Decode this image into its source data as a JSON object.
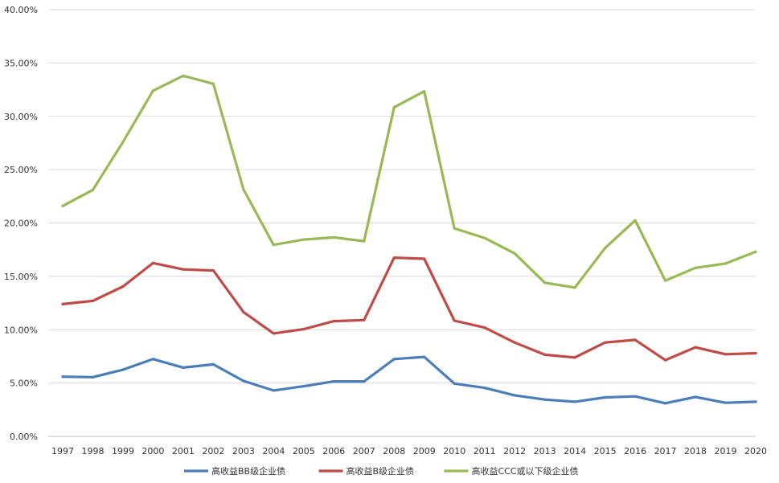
{
  "chart_data": {
    "type": "line",
    "title": "",
    "xlabel": "",
    "ylabel": "",
    "categories": [
      "1997",
      "1998",
      "1999",
      "2000",
      "2001",
      "2002",
      "2003",
      "2004",
      "2005",
      "2006",
      "2007",
      "2008",
      "2009",
      "2010",
      "2011",
      "2012",
      "2013",
      "2014",
      "2015",
      "2016",
      "2017",
      "2018",
      "2019",
      "2020"
    ],
    "ylim": [
      0,
      40
    ],
    "y_ticks": [
      0,
      5,
      10,
      15,
      20,
      25,
      30,
      35,
      40
    ],
    "y_tick_labels": [
      "0.00%",
      "5.00%",
      "10.00%",
      "15.00%",
      "20.00%",
      "25.00%",
      "30.00%",
      "35.00%",
      "40.00%"
    ],
    "grid": "horizontal",
    "legend_position": "bottom",
    "series": [
      {
        "name": "高收益BB级企业债",
        "color": "#4a7ebb",
        "values": [
          5.6,
          5.55,
          6.25,
          7.25,
          6.45,
          6.75,
          5.2,
          4.3,
          4.7,
          5.15,
          5.15,
          7.25,
          7.45,
          4.95,
          4.55,
          3.85,
          3.45,
          3.25,
          3.65,
          3.75,
          3.1,
          3.7,
          3.15,
          3.25
        ]
      },
      {
        "name": "高收益B级企业债",
        "color": "#be4b48",
        "values": [
          12.4,
          12.7,
          14.05,
          16.25,
          15.65,
          15.55,
          11.65,
          9.65,
          10.05,
          10.8,
          10.9,
          16.75,
          16.65,
          10.85,
          10.2,
          8.8,
          7.65,
          7.4,
          8.8,
          9.05,
          7.15,
          8.35,
          7.7,
          7.8
        ]
      },
      {
        "name": "高收益CCC或以下级企业债",
        "color": "#98b954",
        "values": [
          21.6,
          23.1,
          27.6,
          32.4,
          33.8,
          33.05,
          23.15,
          17.95,
          18.45,
          18.65,
          18.3,
          30.85,
          32.35,
          19.5,
          18.6,
          17.15,
          14.4,
          13.95,
          17.65,
          20.25,
          14.6,
          15.8,
          16.2,
          17.3
        ]
      }
    ]
  }
}
